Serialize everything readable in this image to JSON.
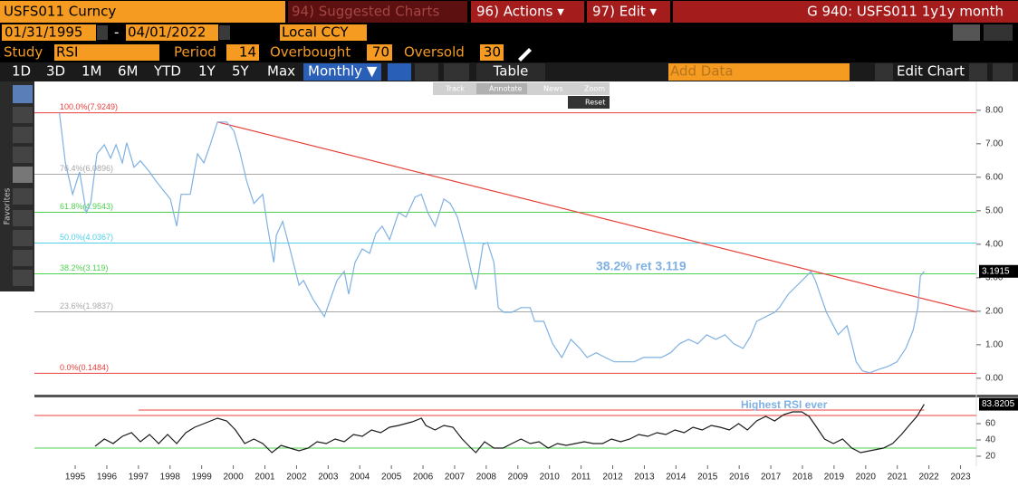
{
  "ui": {
    "security": "USFS011 Curncy",
    "menu": [
      "94) Suggested Charts",
      "96) Actions ▾",
      "97) Edit ▾"
    ],
    "page_title": "G 940: USFS011 1y1y month",
    "start_date": "01/31/1995",
    "date_sep": "-",
    "end_date": "04/01/2022",
    "currency": "Local CCY",
    "study": {
      "label": "Study",
      "value": "RSI",
      "period_label": "Period",
      "period": 14,
      "overbought_label": "Overbought",
      "overbought": 70,
      "oversold_label": "Oversold",
      "oversold": 30
    },
    "ranges": [
      "1D",
      "3D",
      "1M",
      "6M",
      "YTD",
      "1Y",
      "5Y",
      "Max"
    ],
    "frequency": "Monthly ▼",
    "table": "Table",
    "add_data": "Add Data",
    "edit_chart": "Edit Chart",
    "tools": [
      "Track",
      "Annotate",
      "News",
      "Zoom"
    ],
    "reset": "Reset",
    "sidebar": "Favorites"
  },
  "chart_data": [
    {
      "type": "line",
      "xlim": [
        1994.21,
        2024
      ],
      "ylim": [
        -0.49,
        8.86
      ],
      "yticks": [
        {
          "value": 0,
          "label": "0.00"
        },
        {
          "value": 1,
          "label": "1.00"
        },
        {
          "value": 2,
          "label": "2.00"
        },
        {
          "value": 3,
          "label": "3.00"
        },
        {
          "value": 4,
          "label": "4.00"
        },
        {
          "value": 5,
          "label": "5.00"
        },
        {
          "value": 6,
          "label": "6.00"
        },
        {
          "value": 7,
          "label": "7.00"
        },
        {
          "value": 8,
          "label": "8.00"
        }
      ],
      "x": [
        1995.0,
        1995.19,
        1995.42,
        1995.64,
        1995.85,
        1995.99,
        1996.19,
        1996.42,
        1996.62,
        1996.79,
        1996.99,
        1997.13,
        1997.36,
        1997.56,
        1997.85,
        1998.05,
        1998.28,
        1998.51,
        1998.71,
        1998.85,
        1999.14,
        1999.37,
        1999.57,
        1999.77,
        2000.0,
        2000.29,
        2000.52,
        2000.72,
        2000.92,
        2001.15,
        2001.43,
        2001.58,
        2001.78,
        2001.86,
        2002.06,
        2002.29,
        2002.58,
        2002.72,
        2003.01,
        2003.38,
        2003.58,
        2003.78,
        2004.01,
        2004.15,
        2004.35,
        2004.58,
        2004.81,
        2005.01,
        2005.21,
        2005.44,
        2005.73,
        2005.96,
        2006.25,
        2006.45,
        2006.65,
        2006.88,
        2007.16,
        2007.36,
        2007.59,
        2007.82,
        2008.02,
        2008.17,
        2008.4,
        2008.54,
        2008.74,
        2008.88,
        2009.05,
        2009.31,
        2009.6,
        2009.89,
        2010.03,
        2010.32,
        2010.6,
        2010.89,
        2011.18,
        2011.46,
        2011.69,
        2011.98,
        2012.26,
        2012.55,
        2012.9,
        2013.18,
        2013.47,
        2013.75,
        2014.04,
        2014.33,
        2014.61,
        2014.9,
        2015.19,
        2015.47,
        2015.76,
        2016.05,
        2016.33,
        2016.62,
        2016.85,
        2017.05,
        2017.34,
        2017.62,
        2017.77,
        2018.05,
        2018.34,
        2018.63,
        2018.77,
        2018.91,
        2019.06,
        2019.26,
        2019.48,
        2019.63,
        2019.91,
        2020.06,
        2020.2,
        2020.4,
        2020.63,
        2020.92,
        2021.2,
        2021.49,
        2021.77,
        2022.0,
        2022.15,
        2022.23,
        2022.35
      ],
      "series": [
        {
          "color": "#7fb1e3",
          "values": [
            7.92,
            6.43,
            5.49,
            6.16,
            4.95,
            5.22,
            6.7,
            6.97,
            6.57,
            6.97,
            6.43,
            7.03,
            6.3,
            6.49,
            6.16,
            5.89,
            5.62,
            5.35,
            4.54,
            5.49,
            5.49,
            6.7,
            6.43,
            6.97,
            7.65,
            7.65,
            7.38,
            6.7,
            5.89,
            5.22,
            5.49,
            4.54,
            3.46,
            4.27,
            4.68,
            3.86,
            2.78,
            2.92,
            2.38,
            1.84,
            2.38,
            2.92,
            3.19,
            2.51,
            3.46,
            3.86,
            3.73,
            4.32,
            4.54,
            4.14,
            4.95,
            4.81,
            5.41,
            5.49,
            4.95,
            4.54,
            5.35,
            5.22,
            4.81,
            4.0,
            3.19,
            2.65,
            4.0,
            4.05,
            3.46,
            2.11,
            1.97,
            1.97,
            2.11,
            2.11,
            1.7,
            1.7,
            1.03,
            0.62,
            1.16,
            0.89,
            0.62,
            0.76,
            0.62,
            0.49,
            0.49,
            0.49,
            0.62,
            0.62,
            0.62,
            0.76,
            1.03,
            1.16,
            1.03,
            1.3,
            1.16,
            1.3,
            1.03,
            0.89,
            1.24,
            1.7,
            1.84,
            1.97,
            2.11,
            2.51,
            2.78,
            3.05,
            3.19,
            2.92,
            2.51,
            1.97,
            1.57,
            1.3,
            1.57,
            1.03,
            0.49,
            0.22,
            0.16,
            0.27,
            0.35,
            0.49,
            0.89,
            1.43,
            2.11,
            3.05,
            3.1915
          ]
        }
      ],
      "levels": [
        {
          "value": 7.9249,
          "label": "100.0%(7.9249)",
          "color": "#e8413c"
        },
        {
          "value": 6.0896,
          "label": "76.4%(6.0896)",
          "color": "#a8a8a8"
        },
        {
          "value": 4.9543,
          "label": "61.8%(4.9543)",
          "color": "#4fd24f"
        },
        {
          "value": 4.0367,
          "label": "50.0%(4.0367)",
          "color": "#4fd0e6"
        },
        {
          "value": 3.119,
          "label": "38.2%(3.119)",
          "color": "#4fd24f"
        },
        {
          "value": 1.9837,
          "label": "23.6%(1.9837)",
          "color": "#a8a8a8"
        },
        {
          "value": 0.1484,
          "label": "0.0%(0.1484)",
          "color": "#e8413c"
        }
      ],
      "trendline": {
        "x": [
          2000.0,
          2024.0
        ],
        "y": [
          7.65,
          1.98
        ],
        "color": "#e8413c"
      },
      "annotation": "38.2% ret 3.119",
      "last_value": 3.1915
    },
    {
      "type": "line",
      "xlim": [
        1994.21,
        2024
      ],
      "ylim": [
        8.9,
        91.1
      ],
      "yticks": [
        20,
        40,
        60
      ],
      "xticks": [
        {
          "value": 1995.5,
          "label": "1995"
        },
        {
          "value": 1996.5,
          "label": "1996"
        },
        {
          "value": 1997.5,
          "label": "1997"
        },
        {
          "value": 1998.5,
          "label": "1998"
        },
        {
          "value": 1999.5,
          "label": "1999"
        },
        {
          "value": 2000.5,
          "label": "2000"
        },
        {
          "value": 2001.5,
          "label": "2001"
        },
        {
          "value": 2002.5,
          "label": "2002"
        },
        {
          "value": 2003.5,
          "label": "2003"
        },
        {
          "value": 2004.5,
          "label": "2004"
        },
        {
          "value": 2005.5,
          "label": "2005"
        },
        {
          "value": 2006.5,
          "label": "2006"
        },
        {
          "value": 2007.5,
          "label": "2007"
        },
        {
          "value": 2008.5,
          "label": "2008"
        },
        {
          "value": 2009.5,
          "label": "2009"
        },
        {
          "value": 2010.5,
          "label": "2010"
        },
        {
          "value": 2011.5,
          "label": "2011"
        },
        {
          "value": 2012.5,
          "label": "2012"
        },
        {
          "value": 2013.5,
          "label": "2013"
        },
        {
          "value": 2014.5,
          "label": "2014"
        },
        {
          "value": 2015.5,
          "label": "2015"
        },
        {
          "value": 2016.5,
          "label": "2016"
        },
        {
          "value": 2017.5,
          "label": "2017"
        },
        {
          "value": 2018.5,
          "label": "2018"
        },
        {
          "value": 2019.5,
          "label": "2019"
        },
        {
          "value": 2020.5,
          "label": "2020"
        },
        {
          "value": 2021.5,
          "label": "2021"
        },
        {
          "value": 2022.5,
          "label": "2022"
        },
        {
          "value": 2023.5,
          "label": "2023"
        }
      ],
      "x": [
        1996.13,
        1996.42,
        1996.7,
        1996.99,
        1997.28,
        1997.56,
        1997.85,
        1998.14,
        1998.42,
        1998.71,
        1999.0,
        1999.28,
        1999.57,
        2000.0,
        2000.29,
        2000.57,
        2000.86,
        2001.15,
        2001.43,
        2001.72,
        2002.01,
        2002.29,
        2002.58,
        2002.87,
        2003.15,
        2003.44,
        2003.72,
        2004.01,
        2004.3,
        2004.58,
        2004.87,
        2005.16,
        2005.44,
        2005.73,
        2006.16,
        2006.45,
        2006.59,
        2006.88,
        2007.16,
        2007.45,
        2007.74,
        2008.02,
        2008.17,
        2008.45,
        2008.74,
        2009.03,
        2009.31,
        2009.6,
        2009.89,
        2010.17,
        2010.46,
        2010.75,
        2011.03,
        2011.32,
        2011.6,
        2011.89,
        2012.18,
        2012.46,
        2012.75,
        2013.04,
        2013.32,
        2013.61,
        2013.9,
        2014.18,
        2014.47,
        2014.76,
        2015.04,
        2015.33,
        2015.62,
        2015.9,
        2016.19,
        2016.48,
        2016.76,
        2017.05,
        2017.34,
        2017.62,
        2017.91,
        2018.19,
        2018.48,
        2018.71,
        2018.91,
        2019.2,
        2019.48,
        2019.77,
        2020.06,
        2020.34,
        2020.63,
        2021.06,
        2021.35,
        2021.63,
        2021.92,
        2022.12,
        2022.35
      ],
      "series": [
        {
          "color": "#1a1a1a",
          "values": [
            32.2,
            41.1,
            35.6,
            44.4,
            48.9,
            37.8,
            46.7,
            35.6,
            46.7,
            35.6,
            48.9,
            55.6,
            60,
            66.7,
            63.3,
            52.2,
            35.6,
            41.1,
            35.6,
            24.4,
            33.3,
            30,
            26.7,
            30,
            37.8,
            35.6,
            41.1,
            37.8,
            46.7,
            44.4,
            52.2,
            48.9,
            55.6,
            57.8,
            62.2,
            66.7,
            57.8,
            52.2,
            57.8,
            55.6,
            41.1,
            30,
            24.4,
            37.8,
            30,
            30,
            35.6,
            41.1,
            35.6,
            37.8,
            30,
            35.6,
            33.3,
            35.6,
            37.8,
            35.6,
            35.6,
            41.1,
            37.8,
            41.1,
            46.7,
            44.4,
            48.9,
            46.7,
            52.2,
            48.9,
            55.6,
            52.2,
            57.8,
            55.6,
            52.2,
            60,
            52.2,
            63.3,
            68.9,
            63.3,
            71.1,
            74.4,
            74.4,
            68.9,
            57.8,
            41.1,
            35.6,
            41.1,
            30,
            24.4,
            26.7,
            30,
            35.6,
            46.7,
            60,
            68.9,
            83.8205
          ]
        }
      ],
      "levels": [
        {
          "value": 70,
          "color": "#e8413c"
        },
        {
          "value": 30,
          "color": "#4fd24f"
        }
      ],
      "highline": {
        "value": 76.7,
        "x": [
          1997.5,
          2022.35
        ],
        "color": "#e8413c"
      },
      "annotation": "Highest RSI ever",
      "last_value": 83.8205
    }
  ]
}
